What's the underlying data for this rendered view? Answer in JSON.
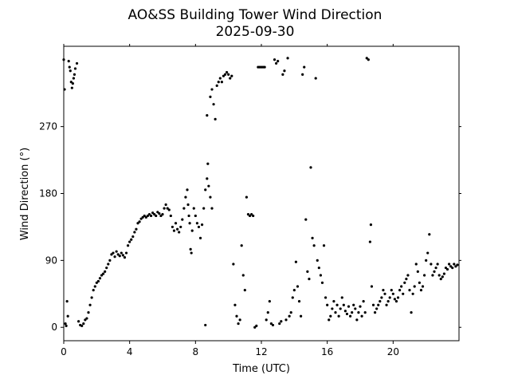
{
  "chart_data": {
    "type": "scatter",
    "title": "AO&SS Building Tower Wind Direction",
    "subtitle": "2025-09-30",
    "xlabel": "Time (UTC)",
    "ylabel": "Wind Direction (°)",
    "xlim": [
      0,
      24
    ],
    "ylim": [
      -18,
      378
    ],
    "xticks": [
      0,
      4,
      8,
      12,
      16,
      20
    ],
    "xtick_labels": [
      "0",
      "4",
      "8",
      "12",
      "16",
      "20"
    ],
    "yticks": [
      0,
      90,
      180,
      270
    ],
    "ytick_labels": [
      "0",
      "90",
      "180",
      "270"
    ],
    "grid": false,
    "marker_color": "#000000",
    "series": [
      {
        "points": [
          [
            0.0,
            360
          ],
          [
            0.05,
            320
          ],
          [
            0.1,
            5
          ],
          [
            0.15,
            2
          ],
          [
            0.2,
            35
          ],
          [
            0.25,
            15
          ],
          [
            0.3,
            358
          ],
          [
            0.35,
            350
          ],
          [
            0.4,
            345
          ],
          [
            0.45,
            330
          ],
          [
            0.5,
            322
          ],
          [
            0.55,
            328
          ],
          [
            0.6,
            335
          ],
          [
            0.65,
            340
          ],
          [
            0.7,
            348
          ],
          [
            0.8,
            355
          ],
          [
            0.9,
            8
          ],
          [
            1.0,
            3
          ],
          [
            1.1,
            2
          ],
          [
            1.2,
            5
          ],
          [
            1.3,
            10
          ],
          [
            1.4,
            12
          ],
          [
            1.5,
            20
          ],
          [
            1.6,
            30
          ],
          [
            1.7,
            40
          ],
          [
            1.8,
            50
          ],
          [
            1.9,
            55
          ],
          [
            2.0,
            60
          ],
          [
            2.1,
            62
          ],
          [
            2.2,
            66
          ],
          [
            2.3,
            70
          ],
          [
            2.4,
            72
          ],
          [
            2.5,
            75
          ],
          [
            2.6,
            80
          ],
          [
            2.7,
            85
          ],
          [
            2.8,
            90
          ],
          [
            2.9,
            98
          ],
          [
            3.0,
            100
          ],
          [
            3.1,
            95
          ],
          [
            3.2,
            102
          ],
          [
            3.3,
            98
          ],
          [
            3.4,
            96
          ],
          [
            3.5,
            100
          ],
          [
            3.6,
            97
          ],
          [
            3.7,
            94
          ],
          [
            3.8,
            100
          ],
          [
            3.9,
            110
          ],
          [
            4.0,
            115
          ],
          [
            4.1,
            118
          ],
          [
            4.2,
            122
          ],
          [
            4.3,
            128
          ],
          [
            4.4,
            132
          ],
          [
            4.5,
            140
          ],
          [
            4.6,
            142
          ],
          [
            4.7,
            146
          ],
          [
            4.8,
            148
          ],
          [
            4.9,
            150
          ],
          [
            5.0,
            148
          ],
          [
            5.1,
            150
          ],
          [
            5.2,
            152
          ],
          [
            5.3,
            150
          ],
          [
            5.4,
            154
          ],
          [
            5.5,
            152
          ],
          [
            5.6,
            150
          ],
          [
            5.7,
            155
          ],
          [
            5.8,
            153
          ],
          [
            5.9,
            150
          ],
          [
            6.0,
            152
          ],
          [
            6.1,
            160
          ],
          [
            6.2,
            165
          ],
          [
            6.3,
            160
          ],
          [
            6.4,
            158
          ],
          [
            6.5,
            150
          ],
          [
            6.6,
            135
          ],
          [
            6.7,
            130
          ],
          [
            6.8,
            140
          ],
          [
            6.9,
            132
          ],
          [
            7.0,
            128
          ],
          [
            7.1,
            135
          ],
          [
            7.2,
            145
          ],
          [
            7.3,
            160
          ],
          [
            7.4,
            175
          ],
          [
            7.5,
            185
          ],
          [
            7.55,
            165
          ],
          [
            7.6,
            150
          ],
          [
            7.65,
            140
          ],
          [
            7.7,
            105
          ],
          [
            7.75,
            100
          ],
          [
            7.8,
            130
          ],
          [
            7.9,
            160
          ],
          [
            8.0,
            150
          ],
          [
            8.1,
            140
          ],
          [
            8.2,
            135
          ],
          [
            8.3,
            120
          ],
          [
            8.4,
            138
          ],
          [
            8.5,
            160
          ],
          [
            8.6,
            185
          ],
          [
            8.7,
            200
          ],
          [
            8.75,
            220
          ],
          [
            8.8,
            190
          ],
          [
            8.9,
            175
          ],
          [
            9.0,
            160
          ],
          [
            8.6,
            3
          ],
          [
            8.7,
            285
          ],
          [
            8.9,
            310
          ],
          [
            9.0,
            320
          ],
          [
            9.1,
            300
          ],
          [
            9.2,
            280
          ],
          [
            9.3,
            325
          ],
          [
            9.4,
            330
          ],
          [
            9.5,
            335
          ],
          [
            9.6,
            330
          ],
          [
            9.7,
            338
          ],
          [
            9.8,
            340
          ],
          [
            9.9,
            343
          ],
          [
            10.0,
            340
          ],
          [
            10.1,
            335
          ],
          [
            10.2,
            338
          ],
          [
            10.3,
            85
          ],
          [
            10.4,
            30
          ],
          [
            10.5,
            15
          ],
          [
            10.6,
            5
          ],
          [
            10.7,
            10
          ],
          [
            10.8,
            110
          ],
          [
            10.9,
            70
          ],
          [
            11.0,
            50
          ],
          [
            11.1,
            175
          ],
          [
            11.2,
            152
          ],
          [
            11.3,
            150
          ],
          [
            11.4,
            152
          ],
          [
            11.5,
            150
          ],
          [
            11.6,
            0
          ],
          [
            11.7,
            2
          ],
          [
            11.8,
            350
          ],
          [
            11.9,
            350
          ],
          [
            12.0,
            350
          ],
          [
            12.1,
            350
          ],
          [
            12.2,
            350
          ],
          [
            12.3,
            10
          ],
          [
            12.4,
            20
          ],
          [
            12.5,
            35
          ],
          [
            12.6,
            5
          ],
          [
            12.7,
            3
          ],
          [
            12.8,
            360
          ],
          [
            12.9,
            355
          ],
          [
            13.0,
            358
          ],
          [
            13.1,
            5
          ],
          [
            13.2,
            8
          ],
          [
            13.3,
            340
          ],
          [
            13.4,
            345
          ],
          [
            13.5,
            10
          ],
          [
            13.6,
            362
          ],
          [
            13.7,
            15
          ],
          [
            13.8,
            20
          ],
          [
            13.9,
            40
          ],
          [
            14.0,
            50
          ],
          [
            14.1,
            88
          ],
          [
            14.2,
            55
          ],
          [
            14.3,
            35
          ],
          [
            14.4,
            15
          ],
          [
            14.5,
            340
          ],
          [
            14.6,
            350
          ],
          [
            14.7,
            145
          ],
          [
            14.8,
            75
          ],
          [
            14.9,
            65
          ],
          [
            15.0,
            215
          ],
          [
            15.1,
            120
          ],
          [
            15.2,
            110
          ],
          [
            15.3,
            335
          ],
          [
            15.4,
            90
          ],
          [
            15.5,
            80
          ],
          [
            15.6,
            70
          ],
          [
            15.7,
            60
          ],
          [
            15.8,
            110
          ],
          [
            15.9,
            40
          ],
          [
            16.0,
            30
          ],
          [
            16.1,
            10
          ],
          [
            16.2,
            15
          ],
          [
            16.3,
            25
          ],
          [
            16.4,
            35
          ],
          [
            16.5,
            20
          ],
          [
            16.6,
            30
          ],
          [
            16.7,
            15
          ],
          [
            16.8,
            25
          ],
          [
            16.9,
            40
          ],
          [
            17.0,
            30
          ],
          [
            17.1,
            22
          ],
          [
            17.2,
            18
          ],
          [
            17.3,
            28
          ],
          [
            17.4,
            15
          ],
          [
            17.5,
            20
          ],
          [
            17.6,
            30
          ],
          [
            17.7,
            25
          ],
          [
            17.8,
            10
          ],
          [
            17.9,
            20
          ],
          [
            18.0,
            28
          ],
          [
            18.1,
            15
          ],
          [
            18.2,
            35
          ],
          [
            18.3,
            20
          ],
          [
            18.4,
            362
          ],
          [
            18.5,
            360
          ],
          [
            18.6,
            115
          ],
          [
            18.65,
            138
          ],
          [
            18.7,
            55
          ],
          [
            18.8,
            30
          ],
          [
            18.9,
            20
          ],
          [
            19.0,
            25
          ],
          [
            19.1,
            30
          ],
          [
            19.2,
            35
          ],
          [
            19.3,
            40
          ],
          [
            19.4,
            50
          ],
          [
            19.5,
            45
          ],
          [
            19.6,
            30
          ],
          [
            19.7,
            35
          ],
          [
            19.8,
            40
          ],
          [
            19.9,
            50
          ],
          [
            20.0,
            45
          ],
          [
            20.1,
            38
          ],
          [
            20.2,
            35
          ],
          [
            20.3,
            40
          ],
          [
            20.4,
            50
          ],
          [
            20.5,
            55
          ],
          [
            20.6,
            45
          ],
          [
            20.7,
            60
          ],
          [
            20.8,
            65
          ],
          [
            20.9,
            70
          ],
          [
            21.0,
            50
          ],
          [
            21.1,
            20
          ],
          [
            21.2,
            45
          ],
          [
            21.3,
            55
          ],
          [
            21.4,
            85
          ],
          [
            21.5,
            75
          ],
          [
            21.6,
            60
          ],
          [
            21.7,
            50
          ],
          [
            21.8,
            55
          ],
          [
            21.9,
            70
          ],
          [
            22.0,
            90
          ],
          [
            22.1,
            100
          ],
          [
            22.2,
            125
          ],
          [
            22.3,
            85
          ],
          [
            22.4,
            70
          ],
          [
            22.5,
            75
          ],
          [
            22.6,
            80
          ],
          [
            22.7,
            85
          ],
          [
            22.8,
            70
          ],
          [
            22.9,
            65
          ],
          [
            23.0,
            68
          ],
          [
            23.1,
            72
          ],
          [
            23.2,
            80
          ],
          [
            23.3,
            78
          ],
          [
            23.4,
            85
          ],
          [
            23.5,
            82
          ],
          [
            23.6,
            80
          ],
          [
            23.7,
            85
          ],
          [
            23.8,
            82
          ],
          [
            23.9,
            84
          ]
        ]
      }
    ]
  }
}
